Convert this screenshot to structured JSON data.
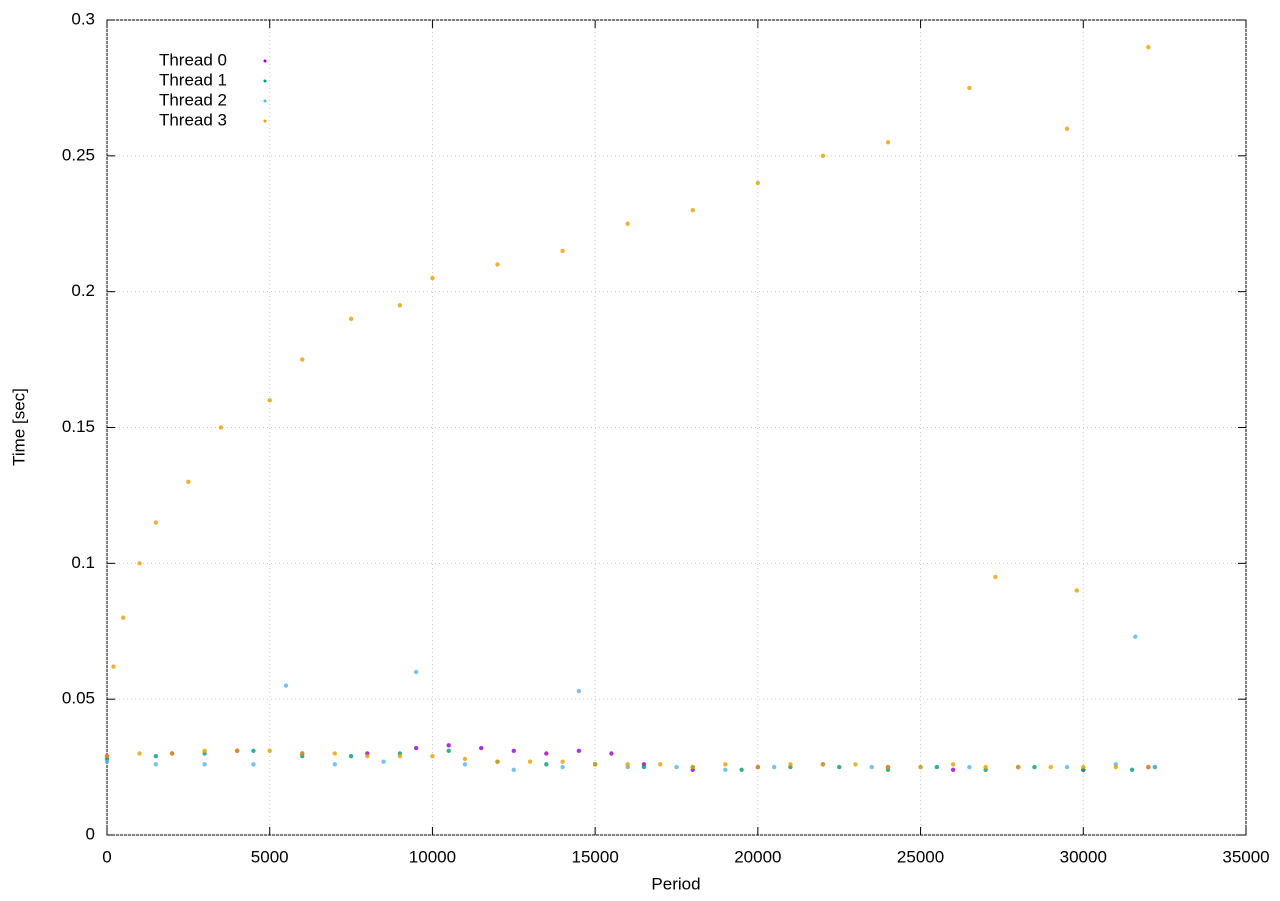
{
  "chart_data": {
    "type": "scatter",
    "x_label": "Period",
    "y_label": "Time [sec]",
    "xlim": [
      0,
      35000
    ],
    "xticks": [
      0,
      5000,
      10000,
      15000,
      20000,
      25000,
      30000,
      35000
    ],
    "ylim": [
      0,
      0.3
    ],
    "yticks": [
      0,
      0.05,
      0.1,
      0.15,
      0.2,
      0.25,
      0.3
    ],
    "grid": true,
    "legend": "top-left",
    "series": [
      {
        "name": "Thread 0",
        "color": "#9400d3",
        "x": [
          0,
          2000,
          4000,
          6000,
          8000,
          9500,
          10500,
          11500,
          12500,
          13500,
          14500,
          15500,
          16500,
          18000,
          20000,
          22000,
          24000,
          26000,
          28000,
          30000,
          32000
        ],
        "values": [
          0.029,
          0.03,
          0.031,
          0.03,
          0.03,
          0.032,
          0.033,
          0.032,
          0.031,
          0.03,
          0.031,
          0.03,
          0.026,
          0.024,
          0.025,
          0.026,
          0.025,
          0.024,
          0.025,
          0.024,
          0.025
        ]
      },
      {
        "name": "Thread 1",
        "color": "#009e73",
        "x": [
          0,
          1500,
          3000,
          4500,
          6000,
          7500,
          9000,
          10500,
          12000,
          13500,
          15000,
          16500,
          18000,
          19500,
          21000,
          22500,
          24000,
          25500,
          27000,
          28500,
          30000,
          31500,
          32200
        ],
        "values": [
          0.028,
          0.029,
          0.03,
          0.031,
          0.029,
          0.029,
          0.03,
          0.031,
          0.027,
          0.026,
          0.026,
          0.025,
          0.025,
          0.024,
          0.025,
          0.025,
          0.024,
          0.025,
          0.024,
          0.025,
          0.024,
          0.024,
          0.025
        ]
      },
      {
        "name": "Thread 2",
        "color": "#56b4e9",
        "x": [
          0,
          1500,
          3000,
          4500,
          5500,
          7000,
          8500,
          9500,
          11000,
          12500,
          14000,
          14500,
          16000,
          17500,
          19000,
          20500,
          22000,
          23500,
          25000,
          26500,
          28000,
          29500,
          31000,
          31600,
          32200
        ],
        "values": [
          0.027,
          0.026,
          0.026,
          0.026,
          0.055,
          0.026,
          0.027,
          0.06,
          0.026,
          0.024,
          0.025,
          0.053,
          0.025,
          0.025,
          0.024,
          0.025,
          0.026,
          0.025,
          0.025,
          0.025,
          0.025,
          0.025,
          0.026,
          0.073,
          0.025
        ]
      },
      {
        "name": "Thread 3",
        "color": "#e69f00",
        "x": [
          200,
          500,
          1000,
          1500,
          2500,
          3500,
          5000,
          6000,
          7500,
          9000,
          10000,
          12000,
          14000,
          16000,
          18000,
          20000,
          22000,
          24000,
          26500,
          29500,
          32000,
          27300,
          29800,
          0,
          1000,
          2000,
          3000,
          4000,
          5000,
          6000,
          7000,
          8000,
          9000,
          10000,
          11000,
          12000,
          13000,
          14000,
          15000,
          16000,
          17000,
          18000,
          19000,
          20000,
          21000,
          22000,
          23000,
          24000,
          25000,
          26000,
          27000,
          28000,
          29000,
          30000,
          31000,
          32000
        ],
        "values": [
          0.062,
          0.08,
          0.1,
          0.115,
          0.13,
          0.15,
          0.16,
          0.175,
          0.19,
          0.195,
          0.205,
          0.21,
          0.215,
          0.225,
          0.23,
          0.24,
          0.25,
          0.255,
          0.275,
          0.26,
          0.29,
          0.095,
          0.09,
          0.029,
          0.03,
          0.03,
          0.031,
          0.031,
          0.031,
          0.03,
          0.03,
          0.029,
          0.029,
          0.029,
          0.028,
          0.027,
          0.027,
          0.027,
          0.026,
          0.026,
          0.026,
          0.025,
          0.026,
          0.025,
          0.026,
          0.026,
          0.026,
          0.025,
          0.025,
          0.026,
          0.025,
          0.025,
          0.025,
          0.025,
          0.025,
          0.025
        ]
      }
    ]
  }
}
